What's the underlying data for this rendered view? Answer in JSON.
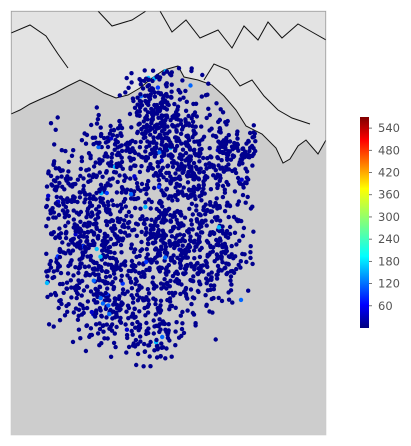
{
  "map": {
    "water_color": "#e3e3e3",
    "land_color": "#cdcdcd",
    "coastline_color": "#111111",
    "point_colormap": "jet",
    "point_color_dominant": "#00008f"
  },
  "colorbar": {
    "colormap": "jet",
    "min": 0,
    "max": 570,
    "tick_labels": [
      "540",
      "480",
      "420",
      "360",
      "300",
      "240",
      "180",
      "120",
      "60"
    ],
    "tick_values": [
      540,
      480,
      420,
      360,
      300,
      240,
      180,
      120,
      60
    ]
  }
}
